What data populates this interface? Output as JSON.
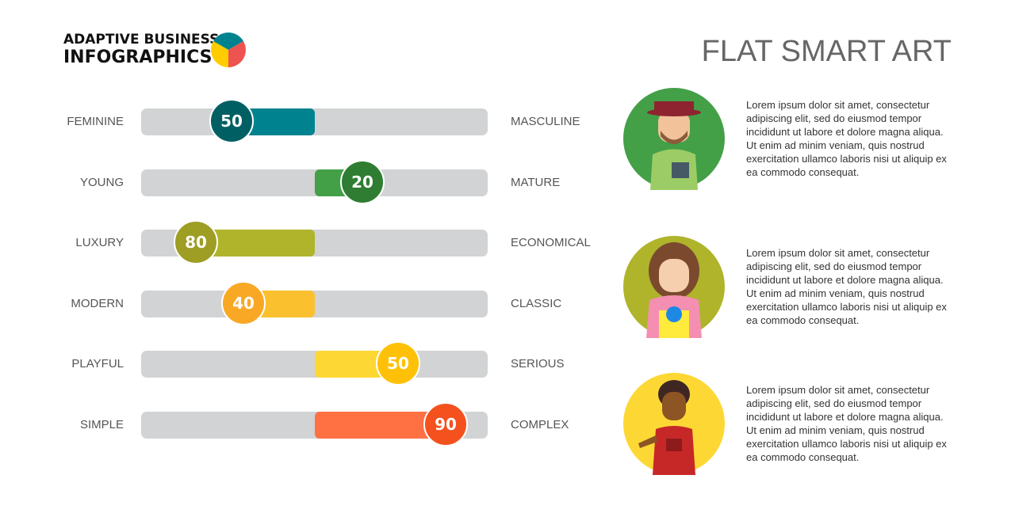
{
  "logo": {
    "line1": "ADAPTIVE BUSINESS",
    "line2": "INFOGRAPHICS",
    "pie_colors": [
      "#00838f",
      "#ef5350",
      "#ffcc00"
    ]
  },
  "title": "FLAT SMART ART",
  "scales": [
    {
      "left": "FEMININE",
      "right": "MASCULINE",
      "value": "50",
      "direction": "left",
      "fill": "#00838f",
      "knob": "#005f63"
    },
    {
      "left": "YOUNG",
      "right": "MATURE",
      "value": "20",
      "direction": "right",
      "fill": "#43a047",
      "knob": "#2e7d32"
    },
    {
      "left": "LUXURY",
      "right": "ECONOMICAL",
      "value": "80",
      "direction": "left",
      "fill": "#afb42b",
      "knob": "#9e9d24"
    },
    {
      "left": "MODERN",
      "right": "CLASSIC",
      "value": "40",
      "direction": "left",
      "fill": "#fbc02d",
      "knob": "#f9a825"
    },
    {
      "left": "PLAYFUL",
      "right": "SERIOUS",
      "value": "50",
      "direction": "right",
      "fill": "#fdd835",
      "knob": "#ffc107"
    },
    {
      "left": "SIMPLE",
      "right": "COMPLEX",
      "value": "90",
      "direction": "right",
      "fill": "#ff7043",
      "knob": "#f4511e"
    }
  ],
  "people": [
    {
      "icon": "man-with-hat-icon",
      "bg": "#43a047",
      "text": "Lorem ipsum dolor sit amet, consectetur adipiscing elit, sed do eiusmod tempor incididunt ut labore et dolore magna aliqua. Ut enim ad minim veniam, quis nostrud exercitation ullamco laboris nisi ut aliquip ex ea commodo consequat."
    },
    {
      "icon": "woman-with-flowers-icon",
      "bg": "#afb42b",
      "text": "Lorem ipsum dolor sit amet, consectetur adipiscing elit, sed do eiusmod tempor incididunt ut labore et dolore magna aliqua. Ut enim ad minim veniam, quis nostrud exercitation ullamco laboris nisi ut aliquip ex ea commodo consequat."
    },
    {
      "icon": "woman-with-apron-icon",
      "bg": "#fdd835",
      "text": "Lorem ipsum dolor sit amet, consectetur adipiscing elit, sed do eiusmod tempor incididunt ut labore et dolore magna aliqua. Ut enim ad minim veniam, quis nostrud exercitation ullamco laboris nisi ut aliquip ex ea commodo consequat."
    }
  ]
}
